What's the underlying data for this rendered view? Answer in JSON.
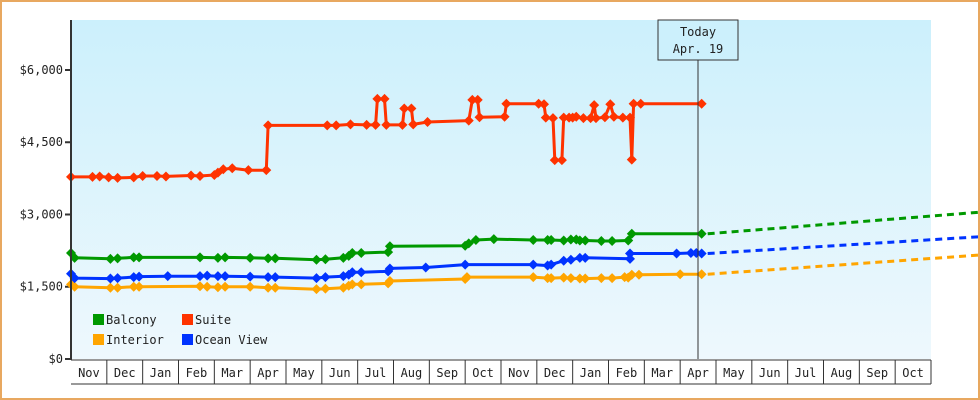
{
  "chart_data": {
    "type": "line",
    "title": "",
    "xlabel": "",
    "ylabel": "",
    "ylim": [
      0,
      7000
    ],
    "y_ticks": [
      "$0",
      "$1,500",
      "$3,000",
      "$4,500",
      "$6,000"
    ],
    "y_tick_values": [
      0,
      1500,
      3000,
      4500,
      6000
    ],
    "x_ticks": [
      "Nov",
      "Dec",
      "Jan",
      "Feb",
      "Mar",
      "Apr",
      "May",
      "Jun",
      "Jul",
      "Aug",
      "Sep",
      "Oct",
      "Nov",
      "Dec",
      "Jan",
      "Feb",
      "Mar",
      "Apr",
      "May",
      "Jun",
      "Jul",
      "Aug",
      "Sep",
      "Oct"
    ],
    "today_marker": {
      "line1": "Today",
      "line2": "Apr. 19",
      "x": 17.6
    },
    "legend": [
      {
        "name": "Balcony",
        "color": "#009900"
      },
      {
        "name": "Suite",
        "color": "#ff3300"
      },
      {
        "name": "Interior",
        "color": "#ffa500"
      },
      {
        "name": "Ocean View",
        "color": "#0033ff"
      }
    ],
    "series": [
      {
        "name": "Suite",
        "color": "#ff3300",
        "points": [
          [
            0,
            3780
          ],
          [
            0.6,
            3780
          ],
          [
            0.8,
            3790
          ],
          [
            1.05,
            3770
          ],
          [
            1.3,
            3760
          ],
          [
            1.75,
            3770
          ],
          [
            2.0,
            3800
          ],
          [
            2.4,
            3800
          ],
          [
            2.65,
            3790
          ],
          [
            3.35,
            3810
          ],
          [
            3.6,
            3800
          ],
          [
            4.0,
            3820
          ],
          [
            4.1,
            3870
          ],
          [
            4.25,
            3940
          ],
          [
            4.5,
            3960
          ],
          [
            4.95,
            3920
          ],
          [
            5.45,
            3920
          ],
          [
            5.5,
            4850
          ],
          [
            7.15,
            4850
          ],
          [
            7.4,
            4850
          ],
          [
            7.8,
            4870
          ],
          [
            8.25,
            4860
          ],
          [
            8.5,
            4860
          ],
          [
            8.55,
            5400
          ],
          [
            8.75,
            5400
          ],
          [
            8.8,
            4860
          ],
          [
            9.25,
            4860
          ],
          [
            9.3,
            5200
          ],
          [
            9.5,
            5200
          ],
          [
            9.55,
            4870
          ],
          [
            9.95,
            4920
          ],
          [
            11.1,
            4950
          ],
          [
            11.2,
            5380
          ],
          [
            11.35,
            5380
          ],
          [
            11.4,
            5020
          ],
          [
            12.1,
            5030
          ],
          [
            12.15,
            5300
          ],
          [
            13.05,
            5300
          ],
          [
            13.2,
            5290
          ],
          [
            13.25,
            5010
          ],
          [
            13.45,
            5000
          ],
          [
            13.5,
            4130
          ],
          [
            13.7,
            4130
          ],
          [
            13.75,
            5010
          ],
          [
            13.9,
            5010
          ],
          [
            14.0,
            5010
          ],
          [
            14.1,
            5030
          ],
          [
            14.3,
            5000
          ],
          [
            14.5,
            5000
          ],
          [
            14.6,
            5270
          ],
          [
            14.65,
            5000
          ],
          [
            14.9,
            5020
          ],
          [
            15.05,
            5290
          ],
          [
            15.15,
            5030
          ],
          [
            15.4,
            5010
          ],
          [
            15.6,
            5010
          ],
          [
            15.65,
            4140
          ],
          [
            15.7,
            5300
          ],
          [
            15.9,
            5300
          ],
          [
            17.6,
            5300
          ]
        ]
      },
      {
        "name": "Balcony",
        "color": "#009900",
        "points": [
          [
            0,
            2200
          ],
          [
            0.1,
            2100
          ],
          [
            1.1,
            2080
          ],
          [
            1.3,
            2090
          ],
          [
            1.75,
            2110
          ],
          [
            1.9,
            2110
          ],
          [
            3.6,
            2110
          ],
          [
            4.1,
            2100
          ],
          [
            4.3,
            2110
          ],
          [
            5.0,
            2100
          ],
          [
            5.5,
            2090
          ],
          [
            5.7,
            2090
          ],
          [
            6.85,
            2060
          ],
          [
            7.1,
            2070
          ],
          [
            7.6,
            2100
          ],
          [
            7.75,
            2140
          ],
          [
            7.85,
            2200
          ],
          [
            8.1,
            2200
          ],
          [
            8.85,
            2220
          ],
          [
            8.9,
            2340
          ],
          [
            11.0,
            2350
          ],
          [
            11.1,
            2400
          ],
          [
            11.3,
            2470
          ],
          [
            11.8,
            2490
          ],
          [
            12.9,
            2470
          ],
          [
            13.3,
            2470
          ],
          [
            13.4,
            2470
          ],
          [
            13.75,
            2460
          ],
          [
            13.95,
            2480
          ],
          [
            14.1,
            2480
          ],
          [
            14.2,
            2460
          ],
          [
            14.35,
            2460
          ],
          [
            14.8,
            2450
          ],
          [
            15.1,
            2450
          ],
          [
            15.55,
            2460
          ],
          [
            15.65,
            2600
          ],
          [
            17.6,
            2600
          ]
        ]
      },
      {
        "name": "Ocean View",
        "color": "#0033ff",
        "points": [
          [
            0,
            1770
          ],
          [
            0.1,
            1680
          ],
          [
            1.1,
            1670
          ],
          [
            1.3,
            1680
          ],
          [
            1.75,
            1700
          ],
          [
            1.9,
            1710
          ],
          [
            2.7,
            1720
          ],
          [
            3.6,
            1720
          ],
          [
            3.8,
            1730
          ],
          [
            4.1,
            1720
          ],
          [
            4.3,
            1720
          ],
          [
            5.0,
            1710
          ],
          [
            5.5,
            1700
          ],
          [
            5.7,
            1700
          ],
          [
            6.85,
            1680
          ],
          [
            7.1,
            1700
          ],
          [
            7.6,
            1720
          ],
          [
            7.75,
            1750
          ],
          [
            7.85,
            1800
          ],
          [
            8.1,
            1800
          ],
          [
            8.85,
            1820
          ],
          [
            8.9,
            1880
          ],
          [
            9.9,
            1900
          ],
          [
            11.0,
            1960
          ],
          [
            12.9,
            1960
          ],
          [
            13.3,
            1940
          ],
          [
            13.4,
            1960
          ],
          [
            13.75,
            2040
          ],
          [
            13.95,
            2060
          ],
          [
            14.2,
            2100
          ],
          [
            14.35,
            2100
          ],
          [
            15.6,
            2080
          ],
          [
            15.6,
            2190
          ],
          [
            16.9,
            2190
          ],
          [
            17.3,
            2200
          ],
          [
            17.45,
            2200
          ],
          [
            17.6,
            2190
          ]
        ]
      },
      {
        "name": "Interior",
        "color": "#ffa500",
        "points": [
          [
            0,
            1550
          ],
          [
            0.1,
            1500
          ],
          [
            1.1,
            1480
          ],
          [
            1.3,
            1480
          ],
          [
            1.75,
            1500
          ],
          [
            1.9,
            1500
          ],
          [
            3.6,
            1510
          ],
          [
            3.8,
            1500
          ],
          [
            4.1,
            1490
          ],
          [
            4.3,
            1500
          ],
          [
            5.0,
            1500
          ],
          [
            5.5,
            1480
          ],
          [
            5.7,
            1480
          ],
          [
            6.85,
            1450
          ],
          [
            7.1,
            1460
          ],
          [
            7.6,
            1480
          ],
          [
            7.75,
            1520
          ],
          [
            7.85,
            1550
          ],
          [
            8.1,
            1550
          ],
          [
            8.85,
            1570
          ],
          [
            8.9,
            1620
          ],
          [
            11.0,
            1660
          ],
          [
            11.05,
            1700
          ],
          [
            12.9,
            1700
          ],
          [
            13.3,
            1680
          ],
          [
            13.4,
            1680
          ],
          [
            13.75,
            1690
          ],
          [
            13.95,
            1680
          ],
          [
            14.2,
            1670
          ],
          [
            14.35,
            1670
          ],
          [
            14.8,
            1680
          ],
          [
            15.1,
            1680
          ],
          [
            15.45,
            1700
          ],
          [
            15.55,
            1690
          ],
          [
            15.65,
            1750
          ],
          [
            15.85,
            1750
          ],
          [
            17.0,
            1760
          ],
          [
            17.6,
            1760
          ]
        ]
      }
    ],
    "projections": [
      {
        "name": "Balcony",
        "color": "#009900",
        "from": [
          17.6,
          2600
        ],
        "to": [
          24,
          3050
        ]
      },
      {
        "name": "Ocean View",
        "color": "#0033ff",
        "from": [
          17.6,
          2190
        ],
        "to": [
          24,
          2540
        ]
      },
      {
        "name": "Interior",
        "color": "#ffa500",
        "from": [
          17.6,
          1760
        ],
        "to": [
          24,
          2160
        ]
      }
    ]
  }
}
